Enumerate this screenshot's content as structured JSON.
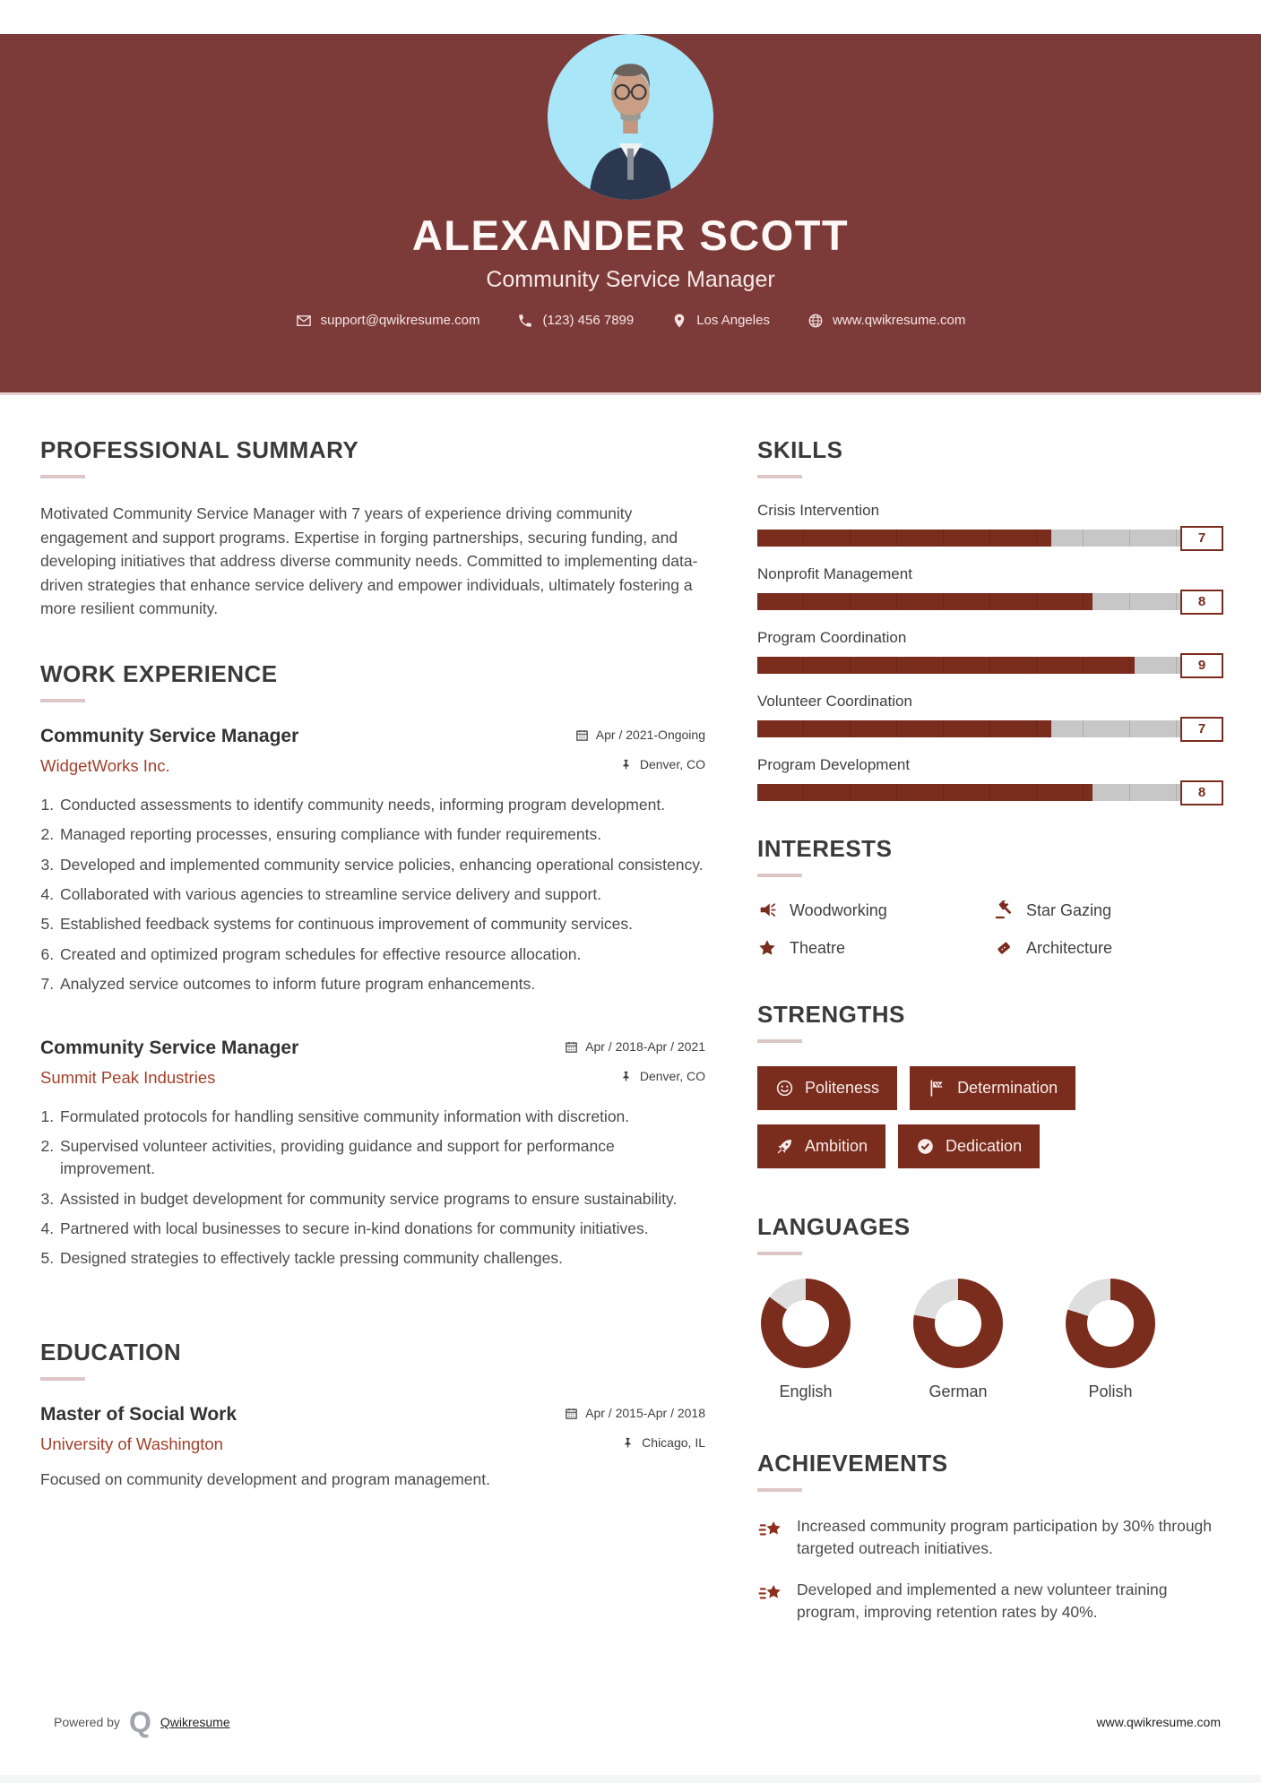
{
  "header": {
    "name": "ALEXANDER SCOTT",
    "title": "Community Service Manager",
    "contacts": {
      "email": "support@qwikresume.com",
      "phone": "(123) 456 7899",
      "location": "Los Angeles",
      "website": "www.qwikresume.com"
    }
  },
  "summary": {
    "heading": "Professional Summary",
    "text": "Motivated Community Service Manager with 7 years of experience driving community engagement and support programs. Expertise in forging partnerships, securing funding, and developing initiatives that address diverse community needs. Committed to implementing data-driven strategies that enhance service delivery and empower individuals, ultimately fostering a more resilient community."
  },
  "work": {
    "heading": "Work Experience",
    "jobs": [
      {
        "title": "Community Service Manager",
        "company": "WidgetWorks Inc.",
        "date": "Apr / 2021-Ongoing",
        "location": "Denver, CO",
        "bullets": [
          "Conducted assessments to identify community needs, informing program development.",
          "Managed reporting processes, ensuring compliance with funder requirements.",
          "Developed and implemented community service policies, enhancing operational consistency.",
          "Collaborated with various agencies to streamline service delivery and support.",
          "Established feedback systems for continuous improvement of community services.",
          "Created and optimized program schedules for effective resource allocation.",
          "Analyzed service outcomes to inform future program enhancements."
        ]
      },
      {
        "title": "Community Service Manager",
        "company": "Summit Peak Industries",
        "date": "Apr / 2018-Apr / 2021",
        "location": "Denver, CO",
        "bullets": [
          "Formulated protocols for handling sensitive community information with discretion.",
          "Supervised volunteer activities, providing guidance and support for performance improvement.",
          "Assisted in budget development for community service programs to ensure sustainability.",
          "Partnered with local businesses to secure in-kind donations for community initiatives.",
          "Designed strategies to effectively tackle pressing community challenges."
        ]
      }
    ]
  },
  "education": {
    "heading": "Education",
    "degree": "Master of Social Work",
    "school": "University of Washington",
    "date": "Apr / 2015-Apr / 2018",
    "location": "Chicago, IL",
    "description": "Focused on community development and program management."
  },
  "skills": {
    "heading": "Skills",
    "items": [
      {
        "label": "Crisis Intervention",
        "value": "7",
        "percent": 63
      },
      {
        "label": "Nonprofit Management",
        "value": "8",
        "percent": 72
      },
      {
        "label": "Program Coordination",
        "value": "9",
        "percent": 81
      },
      {
        "label": "Volunteer Coordination",
        "value": "7",
        "percent": 63
      },
      {
        "label": "Program Development",
        "value": "8",
        "percent": 72
      }
    ]
  },
  "interests": {
    "heading": "Interests",
    "items": [
      {
        "label": "Woodworking",
        "icon": "megaphone-icon"
      },
      {
        "label": "Star Gazing",
        "icon": "gavel-icon"
      },
      {
        "label": "Theatre",
        "icon": "star-icon"
      },
      {
        "label": "Architecture",
        "icon": "ticket-icon"
      }
    ]
  },
  "strengths": {
    "heading": "Strengths",
    "items": [
      {
        "label": "Politeness",
        "icon": "smiley-icon"
      },
      {
        "label": "Determination",
        "icon": "flag-icon"
      },
      {
        "label": "Ambition",
        "icon": "rocket-icon"
      },
      {
        "label": "Dedication",
        "icon": "check-circle-icon"
      }
    ]
  },
  "languages": {
    "heading": "Languages",
    "items": [
      {
        "label": "English",
        "percent": 85
      },
      {
        "label": "German",
        "percent": 78
      },
      {
        "label": "Polish",
        "percent": 80
      }
    ]
  },
  "achievements": {
    "heading": "Achievements",
    "items": [
      "Increased community program participation by 30% through targeted outreach initiatives.",
      "Developed and implemented a new volunteer training program, improving retention rates by 40%."
    ]
  },
  "footer": {
    "powered_by": "Powered by",
    "brand": "Qwikresume",
    "website": "www.qwikresume.com"
  },
  "colors": {
    "header_background": "#7c3b39",
    "accent_maroon": "#7a2c1d",
    "company_text": "#a2402c",
    "bar_track_gray": "#c7c7c7",
    "photo_background": "#a9e6f8"
  }
}
